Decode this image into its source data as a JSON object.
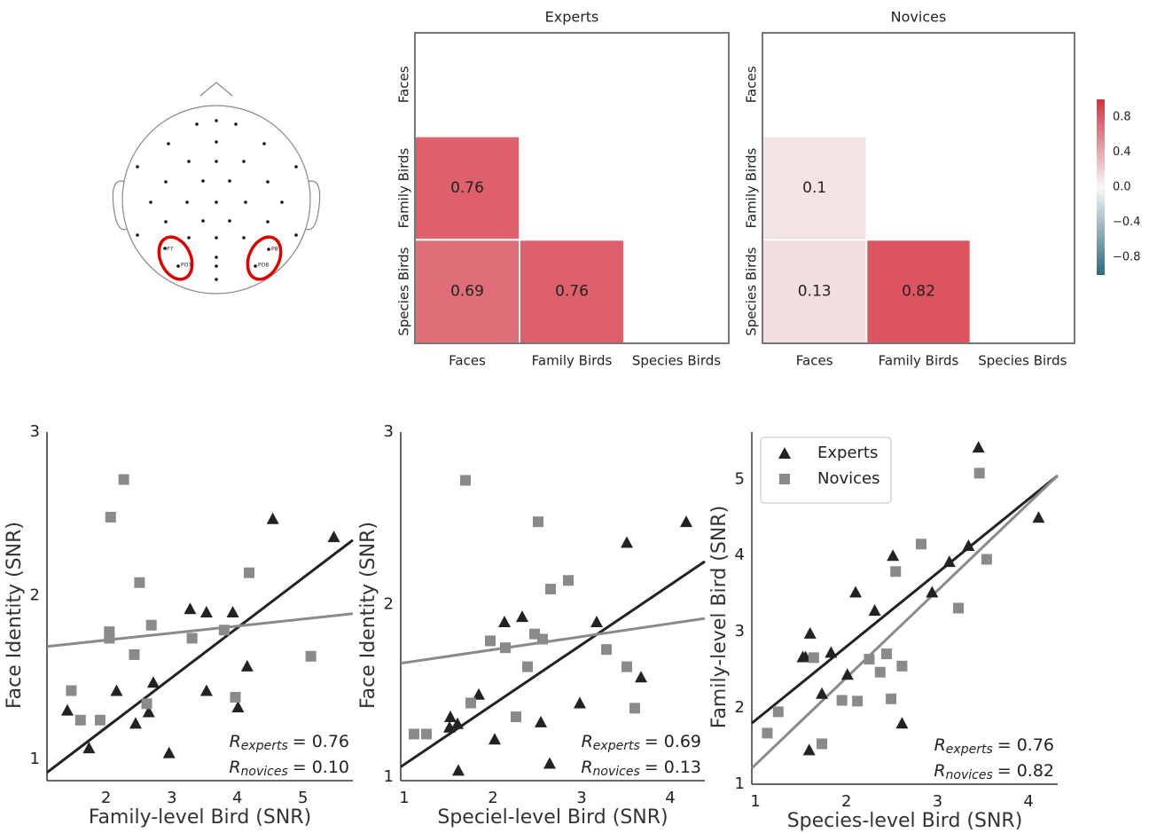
{
  "electrode_map": {
    "labels": [
      "P7",
      "PO7",
      "P8",
      "PO8"
    ]
  },
  "chart_data": [
    {
      "type": "heatmap",
      "title": "Experts",
      "x_categories": [
        "Faces",
        "Family Birds",
        "Species Birds"
      ],
      "y_categories": [
        "Faces",
        "Family Birds",
        "Species Birds"
      ],
      "values": [
        [
          null,
          null,
          null
        ],
        [
          0.76,
          null,
          null
        ],
        [
          0.69,
          0.76,
          null
        ]
      ],
      "zlim": [
        -1,
        1
      ],
      "colors": [
        "#2b6b80",
        "#f7f7f7",
        "#d5303f"
      ]
    },
    {
      "type": "heatmap",
      "title": "Novices",
      "x_categories": [
        "Faces",
        "Family Birds",
        "Species Birds"
      ],
      "y_categories": [
        "Faces",
        "Family Birds",
        "Species Birds"
      ],
      "values": [
        [
          null,
          null,
          null
        ],
        [
          0.1,
          null,
          null
        ],
        [
          0.13,
          0.82,
          null
        ]
      ],
      "zlim": [
        -1,
        1
      ],
      "colors": [
        "#2b6b80",
        "#f7f7f7",
        "#d5303f"
      ],
      "zticks": [
        0.8,
        0.4,
        {
          "value": 0,
          "label": "0.0"
        },
        {
          "value": -0.4,
          "label": "−0.4"
        },
        {
          "value": -0.8,
          "label": "−0.8"
        }
      ]
    },
    {
      "type": "scatter",
      "xlabel": "Family-level Bird (SNR)",
      "ylabel": "Face Identity (SNR)",
      "xlim": [
        1.1,
        5.76
      ],
      "ylim": [
        0.87,
        3.0
      ],
      "xticks": [
        2,
        3,
        4,
        5
      ],
      "yticks": [
        1,
        2,
        3
      ],
      "series": [
        {
          "color": "#222222",
          "marker": "triangle",
          "x": [
            1.41,
            1.74,
            2.16,
            2.45,
            2.65,
            2.72,
            2.96,
            3.28,
            3.53,
            3.53,
            3.93,
            4.01,
            4.15,
            4.54,
            5.47
          ],
          "values": [
            1.3,
            1.07,
            1.42,
            1.22,
            1.29,
            1.47,
            1.04,
            1.92,
            1.9,
            1.42,
            1.9,
            1.32,
            1.57,
            2.47,
            2.36
          ],
          "fit_x": [
            1.1,
            5.76
          ],
          "fit_values": [
            0.92,
            2.34
          ]
        },
        {
          "color": "#8a8a8a",
          "marker": "square",
          "x": [
            1.47,
            1.61,
            1.91,
            2.07,
            2.05,
            2.05,
            2.27,
            2.43,
            2.51,
            2.62,
            2.69,
            3.31,
            3.8,
            3.97,
            4.18,
            5.12
          ],
          "values": [
            1.42,
            1.24,
            1.24,
            2.48,
            1.78,
            1.74,
            2.71,
            1.64,
            2.08,
            1.34,
            1.82,
            1.74,
            1.79,
            1.38,
            2.14,
            1.63
          ],
          "fit_x": [
            1.1,
            5.76
          ],
          "fit_values": [
            1.69,
            1.89
          ]
        }
      ],
      "annotations": [
        {
          "symbol": "R",
          "sub": "experts",
          "text": "= 0.76"
        },
        {
          "symbol": "R",
          "sub": "novices",
          "text": "= 0.10"
        }
      ]
    },
    {
      "type": "scatter",
      "xlabel": "Speciel-level Bird (SNR)",
      "ylabel": "Face Identity (SNR)",
      "xlim": [
        0.96,
        4.39
      ],
      "ylim": [
        0.98,
        3.0
      ],
      "xticks": [
        1,
        2,
        3,
        4
      ],
      "yticks": [
        1,
        2,
        3
      ],
      "series": [
        {
          "color": "#222222",
          "marker": "triangle",
          "x": [
            1.52,
            1.51,
            1.6,
            1.61,
            1.84,
            2.02,
            2.13,
            2.33,
            2.54,
            2.64,
            2.98,
            3.17,
            3.51,
            3.67,
            4.18
          ],
          "values": [
            1.35,
            1.29,
            1.31,
            1.04,
            1.48,
            1.22,
            1.9,
            1.93,
            1.32,
            1.08,
            1.43,
            1.9,
            2.36,
            1.58,
            2.48
          ],
          "fit_x": [
            0.96,
            4.39
          ],
          "fit_values": [
            1.06,
            2.25
          ]
        },
        {
          "color": "#8a8a8a",
          "marker": "square",
          "x": [
            1.11,
            1.25,
            1.69,
            1.75,
            1.97,
            2.14,
            2.26,
            2.39,
            2.47,
            2.51,
            2.56,
            2.65,
            2.85,
            3.28,
            3.51,
            3.6
          ],
          "values": [
            1.25,
            1.25,
            2.72,
            1.43,
            1.79,
            1.75,
            1.35,
            1.64,
            1.83,
            2.48,
            1.8,
            2.09,
            2.14,
            1.74,
            1.64,
            1.4
          ],
          "fit_x": [
            0.96,
            4.39
          ],
          "fit_values": [
            1.66,
            1.92
          ]
        }
      ],
      "annotations": [
        {
          "symbol": "R",
          "sub": "experts",
          "text": "= 0.69"
        },
        {
          "symbol": "R",
          "sub": "novices",
          "text": "= 0.13"
        }
      ]
    },
    {
      "type": "scatter",
      "xlabel": "Species-level Bird (SNR)",
      "ylabel": "Family-level Bird (SNR)",
      "xlim": [
        0.96,
        4.32
      ],
      "ylim": [
        1.0,
        5.62
      ],
      "xticks": [
        1,
        2,
        3,
        4
      ],
      "yticks": [
        1,
        2,
        3,
        4,
        5
      ],
      "legend": "upper left",
      "series": [
        {
          "name": "Experts",
          "color": "#222222",
          "marker": "triangle",
          "x": [
            1.52,
            1.55,
            1.6,
            1.59,
            1.73,
            1.83,
            2.01,
            2.1,
            2.31,
            2.51,
            2.61,
            2.94,
            3.13,
            3.34,
            3.45,
            4.11
          ],
          "values": [
            2.67,
            2.67,
            2.98,
            1.45,
            2.19,
            2.73,
            2.44,
            3.52,
            3.28,
            4.0,
            1.8,
            3.52,
            3.92,
            4.13,
            5.42,
            4.5
          ],
          "fit_x": [
            0.96,
            4.32
          ],
          "fit_values": [
            1.8,
            5.05
          ]
        },
        {
          "name": "Novices",
          "color": "#8a8a8a",
          "marker": "square",
          "x": [
            1.13,
            1.25,
            1.64,
            1.73,
            1.95,
            2.12,
            2.25,
            2.37,
            2.44,
            2.49,
            2.54,
            2.61,
            2.82,
            3.23,
            3.46,
            3.54
          ],
          "values": [
            1.67,
            1.95,
            2.66,
            1.53,
            2.1,
            2.09,
            2.64,
            2.47,
            2.71,
            2.12,
            3.79,
            2.55,
            4.15,
            3.31,
            5.08,
            3.95
          ],
          "fit_x": [
            0.96,
            4.32
          ],
          "fit_values": [
            1.21,
            5.05
          ]
        }
      ],
      "annotations": [
        {
          "symbol": "R",
          "sub": "experts",
          "text": "= 0.76"
        },
        {
          "symbol": "R",
          "sub": "novices",
          "text": "= 0.82"
        }
      ]
    }
  ]
}
